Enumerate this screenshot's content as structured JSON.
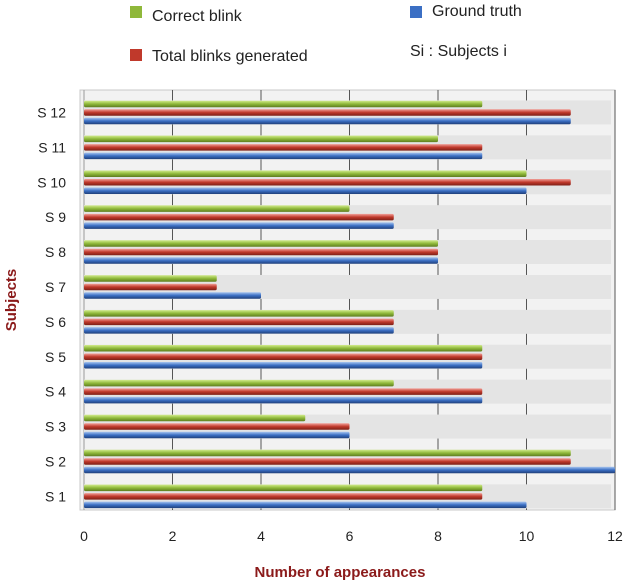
{
  "chart_data": {
    "type": "bar",
    "orientation": "horizontal",
    "categories": [
      "S 1",
      "S 2",
      "S 3",
      "S 4",
      "S 5",
      "S 6",
      "S 7",
      "S 8",
      "S 9",
      "S 10",
      "S 11",
      "S 12"
    ],
    "series": [
      {
        "name": "Correct blink",
        "color": "#8fb83a",
        "values": [
          9,
          11,
          5,
          7,
          9,
          7,
          3,
          8,
          6,
          10,
          8,
          9
        ]
      },
      {
        "name": "Total blinks generated",
        "color": "#c0392b",
        "values": [
          9,
          11,
          6,
          9,
          9,
          7,
          3,
          8,
          7,
          11,
          9,
          11
        ]
      },
      {
        "name": "Ground truth",
        "color": "#3b6fc4",
        "values": [
          10,
          12,
          6,
          9,
          9,
          7,
          4,
          8,
          7,
          10,
          9,
          11
        ]
      }
    ],
    "legend_note": "Si : Subjects i",
    "xlabel": "Number of appearances",
    "ylabel": "Subjects",
    "xlim": [
      0,
      12
    ],
    "xticks": [
      "0",
      "2",
      "4",
      "6",
      "8",
      "10",
      "12"
    ],
    "grid": true,
    "legend_position": "top"
  }
}
